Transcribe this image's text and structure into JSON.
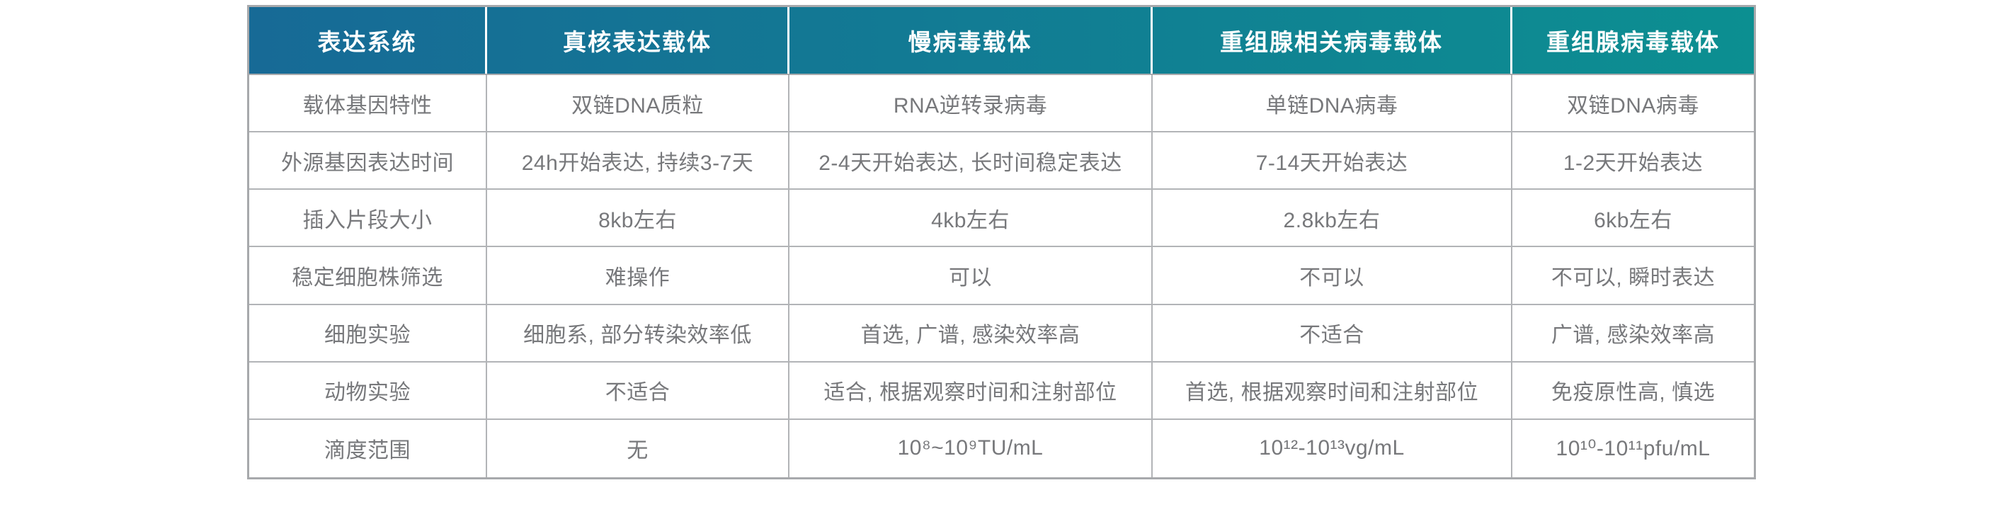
{
  "colors": {
    "header_grad_start": "#176a96",
    "header_grad_end": "#0c8f91",
    "header_text": "#ffffff",
    "body_text": "#77787b",
    "border_outer": "#a7a9ac",
    "border_inner": "#b2b4b7",
    "page_bg": "#ffffff"
  },
  "chart_data": {
    "type": "table",
    "columns": [
      "表达系统",
      "真核表达载体",
      "慢病毒载体",
      "重组腺相关病毒载体",
      "重组腺病毒载体"
    ],
    "rows": [
      {
        "label": "载体基因特性",
        "values": [
          "双链DNA质粒",
          "RNA逆转录病毒",
          "单链DNA病毒",
          "双链DNA病毒"
        ]
      },
      {
        "label": "外源基因表达时间",
        "values": [
          "24h开始表达, 持续3-7天",
          "2-4天开始表达, 长时间稳定表达",
          "7-14天开始表达",
          "1-2天开始表达"
        ]
      },
      {
        "label": "插入片段大小",
        "values": [
          "8kb左右",
          "4kb左右",
          "2.8kb左右",
          "6kb左右"
        ]
      },
      {
        "label": "稳定细胞株筛选",
        "values": [
          "难操作",
          "可以",
          "不可以",
          "不可以, 瞬时表达"
        ]
      },
      {
        "label": "细胞实验",
        "values": [
          "细胞系, 部分转染效率低",
          "首选, 广谱, 感染效率高",
          "不适合",
          "广谱, 感染效率高"
        ]
      },
      {
        "label": "动物实验",
        "values": [
          "不适合",
          "适合, 根据观察时间和注射部位",
          "首选, 根据观察时间和注射部位",
          "免疫原性高, 慎选"
        ]
      },
      {
        "label": "滴度范围",
        "values": [
          "无",
          "10⁸~10⁹TU/mL",
          "10¹²-10¹³vg/mL",
          "10¹⁰-10¹¹pfu/mL"
        ]
      }
    ],
    "layout": {
      "header_background": "gradient blue-to-teal",
      "grid": "full borders",
      "text_align": "center"
    }
  }
}
